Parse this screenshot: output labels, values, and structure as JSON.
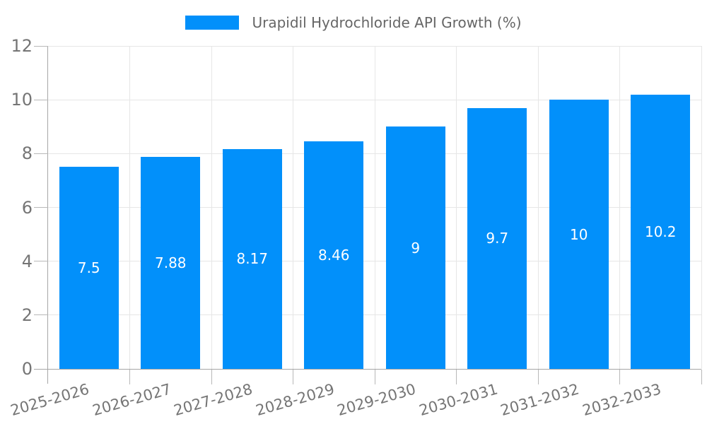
{
  "chart_data": {
    "type": "bar",
    "title": "Urapidil Hydrochloride API Growth (%)",
    "categories": [
      "2025-2026",
      "2026-2027",
      "2027-2028",
      "2028-2029",
      "2029-2030",
      "2030-2031",
      "2031-2032",
      "2032-2033"
    ],
    "values": [
      7.5,
      7.88,
      8.17,
      8.46,
      9,
      9.7,
      10,
      10.2
    ],
    "value_labels": [
      "7.5",
      "7.88",
      "8.17",
      "8.46",
      "9",
      "9.7",
      "10",
      "10.2"
    ],
    "xlabel": "",
    "ylabel": "",
    "ylim": [
      0,
      12
    ],
    "yticks": [
      0,
      2,
      4,
      6,
      8,
      10,
      12
    ],
    "grid": true,
    "legend_position": "top-center",
    "colors": {
      "bar": "#0290FA",
      "grid": "#E6E6E6",
      "axis": "#A6A6A6",
      "tick": "#B8B8B8",
      "tick_label": "#757575",
      "legend_text": "#666666",
      "value_label": "#FFFFFF",
      "background": "#FFFFFF"
    }
  }
}
